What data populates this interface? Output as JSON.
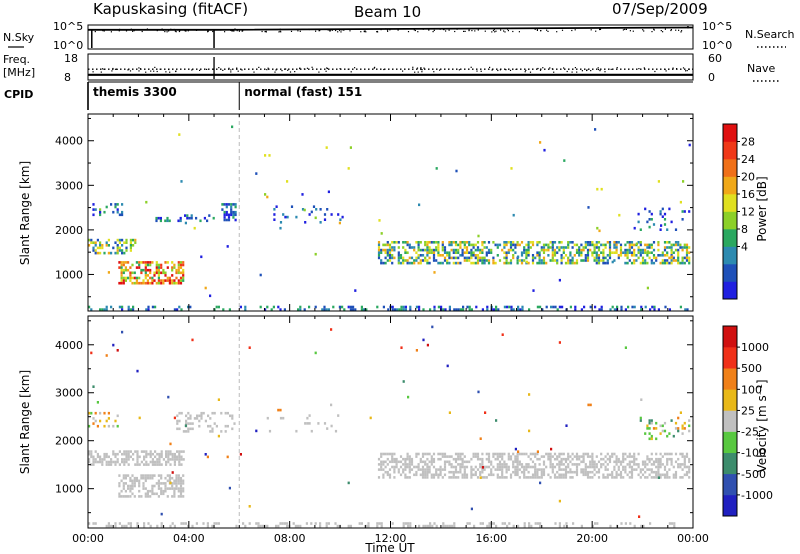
{
  "header": {
    "station": "Kapuskasing (fitACF)",
    "beam": "Beam 10",
    "date": "07/Sep/2009"
  },
  "colors": {
    "ink": "#000000",
    "grey_scatter": "#c0c0c0",
    "cpid_divider": "#999999"
  },
  "chart_data": [
    {
      "type": "line",
      "panel": "noise",
      "left_label": "N.Sky",
      "right_label": "N.Search",
      "left_ticks": [
        "10^5",
        "10^0"
      ],
      "right_ticks": [
        "10^5",
        "10^0"
      ],
      "x": [
        "00:00",
        "05:00",
        "05:01",
        "24:00"
      ],
      "series": [
        {
          "name": "N.Sky",
          "values": [
            10000,
            10000,
            10000,
            30000
          ]
        },
        {
          "name": "N.Search",
          "values": [
            10000,
            10000,
            10000,
            10000
          ]
        }
      ]
    },
    {
      "type": "line",
      "panel": "frequency",
      "left_label": "Freq.",
      "left_unit": "[MHz]",
      "right_label": "Nave",
      "left_ticks": [
        "18",
        "8"
      ],
      "right_ticks": [
        "60",
        "0"
      ],
      "series": [
        {
          "name": "Freq.",
          "values": [
            10,
            10
          ]
        },
        {
          "name": "Nave",
          "values": [
            25,
            25
          ]
        }
      ]
    },
    {
      "type": "table",
      "panel": "cpid",
      "label": "CPID",
      "segments": [
        {
          "start": "00:00",
          "end": "06:00",
          "text": "themis 3300"
        },
        {
          "start": "06:00",
          "end": "24:00",
          "text": "normal (fast) 151"
        }
      ]
    },
    {
      "type": "heatmap",
      "panel": "power",
      "ylabel": "Slant Range [km]",
      "xlim": [
        0,
        24
      ],
      "ylim": [
        180,
        4600
      ],
      "yticks": [
        1000,
        2000,
        3000,
        4000
      ],
      "colorbar": {
        "label": "Power [dB]",
        "ticks": [
          "28",
          "24",
          "20",
          "16",
          "12",
          "8",
          "4"
        ],
        "levels": [
          "#2020e0",
          "#1e50b8",
          "#2c8ab0",
          "#2aa860",
          "#8cd028",
          "#e0e020",
          "#f0a818",
          "#f07018",
          "#f03818",
          "#e01010"
        ]
      },
      "regions": [
        {
          "t0": 0.0,
          "t1": 1.9,
          "r0": 1450,
          "r1": 1800,
          "density": 0.55,
          "lv0": 1,
          "lv1": 6
        },
        {
          "t0": 1.2,
          "t1": 3.8,
          "r0": 800,
          "r1": 1300,
          "density": 0.6,
          "lv0": 3,
          "lv1": 9
        },
        {
          "t0": 0.0,
          "t1": 1.4,
          "r0": 2300,
          "r1": 2600,
          "density": 0.2,
          "lv0": 0,
          "lv1": 4
        },
        {
          "t0": 2.5,
          "t1": 5.0,
          "r0": 2150,
          "r1": 2350,
          "density": 0.3,
          "lv0": 0,
          "lv1": 3
        },
        {
          "t0": 5.2,
          "t1": 5.9,
          "r0": 2200,
          "r1": 2600,
          "density": 0.35,
          "lv0": 0,
          "lv1": 3
        },
        {
          "t0": 7.0,
          "t1": 10.3,
          "r0": 2150,
          "r1": 2550,
          "density": 0.08,
          "lv0": 0,
          "lv1": 2
        },
        {
          "t0": 11.5,
          "t1": 23.9,
          "r0": 1200,
          "r1": 1750,
          "density": 0.5,
          "lv0": 1,
          "lv1": 6
        },
        {
          "t0": 21.8,
          "t1": 23.9,
          "r0": 2000,
          "r1": 2500,
          "density": 0.15,
          "lv0": 0,
          "lv1": 3
        },
        {
          "t0": 0.0,
          "t1": 24.0,
          "r0": 180,
          "r1": 300,
          "density": 0.35,
          "lv0": 0,
          "lv1": 3
        },
        {
          "t0": 0.0,
          "t1": 24.0,
          "r0": 400,
          "r1": 4400,
          "density": 0.003,
          "lv0": 0,
          "lv1": 6
        }
      ]
    },
    {
      "type": "heatmap",
      "panel": "velocity",
      "ylabel": "Slant Range [km]",
      "xlabel": "Time UT",
      "xlim": [
        0,
        24
      ],
      "ylim": [
        180,
        4600
      ],
      "xticks": [
        "00:00",
        "04:00",
        "08:00",
        "12:00",
        "16:00",
        "20:00",
        "00:00"
      ],
      "yticks": [
        1000,
        2000,
        3000,
        4000
      ],
      "colorbar": {
        "label": "Velocity [m s⁻¹]",
        "ticks": [
          "1000",
          "500",
          "100",
          "25",
          "-25",
          "-100",
          "-500",
          "-1000"
        ],
        "levels": [
          "#2020c0",
          "#3050b0",
          "#3c8c6c",
          "#58c840",
          "#c0c0c0",
          "#e8b818",
          "#f08018",
          "#f03018",
          "#d01010"
        ]
      },
      "regions": [
        {
          "t0": 0.0,
          "t1": 3.8,
          "r0": 1450,
          "r1": 1800,
          "density": 0.6,
          "lv0": 4,
          "lv1": 4
        },
        {
          "t0": 1.2,
          "t1": 3.8,
          "r0": 800,
          "r1": 1300,
          "density": 0.55,
          "lv0": 4,
          "lv1": 4
        },
        {
          "t0": 0.0,
          "t1": 1.4,
          "r0": 2300,
          "r1": 2600,
          "density": 0.2,
          "lv0": 3,
          "lv1": 6
        },
        {
          "t0": 3.5,
          "t1": 5.9,
          "r0": 2150,
          "r1": 2600,
          "density": 0.25,
          "lv0": 4,
          "lv1": 4
        },
        {
          "t0": 7.0,
          "t1": 10.3,
          "r0": 2150,
          "r1": 2550,
          "density": 0.06,
          "lv0": 4,
          "lv1": 4
        },
        {
          "t0": 11.5,
          "t1": 23.9,
          "r0": 1200,
          "r1": 1750,
          "density": 0.5,
          "lv0": 4,
          "lv1": 4
        },
        {
          "t0": 21.8,
          "t1": 23.9,
          "r0": 2000,
          "r1": 2500,
          "density": 0.15,
          "lv0": 2,
          "lv1": 6
        },
        {
          "t0": 0.0,
          "t1": 24.0,
          "r0": 180,
          "r1": 300,
          "density": 0.3,
          "lv0": 4,
          "lv1": 4
        },
        {
          "t0": 0.0,
          "t1": 24.0,
          "r0": 400,
          "r1": 4400,
          "density": 0.003,
          "lv0": 0,
          "lv1": 8
        }
      ]
    }
  ]
}
